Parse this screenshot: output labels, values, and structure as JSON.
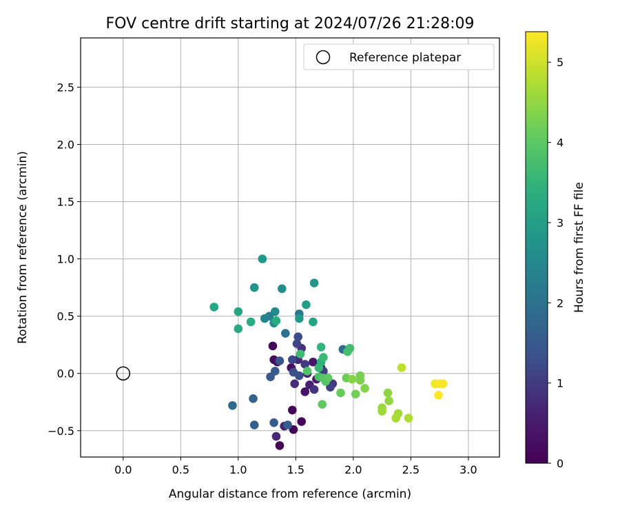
{
  "chart_data": {
    "type": "scatter",
    "title": "FOV centre drift starting at 2024/07/26 21:28:09",
    "xlabel": "Angular distance from reference (arcmin)",
    "ylabel": "Rotation from reference (arcmin)",
    "xlim": [
      -0.37,
      3.27
    ],
    "ylim": [
      -0.73,
      2.93
    ],
    "xticks": [
      "0.0",
      "0.5",
      "1.0",
      "1.5",
      "2.0",
      "2.5",
      "3.0"
    ],
    "xtick_values": [
      0.0,
      0.5,
      1.0,
      1.5,
      2.0,
      2.5,
      3.0
    ],
    "yticks": [
      "−0.5",
      "0.0",
      "0.5",
      "1.0",
      "1.5",
      "2.0",
      "2.5"
    ],
    "ytick_values": [
      -0.5,
      0.0,
      0.5,
      1.0,
      1.5,
      2.0,
      2.5
    ],
    "grid": true,
    "legend": {
      "position": "top-right",
      "entries": [
        "Reference platepar"
      ]
    },
    "reference_point": {
      "x": 0.0,
      "y": 0.0,
      "label": "Reference platepar"
    },
    "colorbar": {
      "label": "Hours from first FF file",
      "range": [
        0,
        5.38
      ],
      "ticks": [
        "0",
        "1",
        "2",
        "3",
        "4",
        "5"
      ],
      "tick_values": [
        0,
        1,
        2,
        3,
        4,
        5
      ],
      "colormap": "viridis"
    },
    "points": [
      {
        "x": 1.36,
        "y": -0.63,
        "hours": 0.0
      },
      {
        "x": 1.48,
        "y": -0.49,
        "hours": 0.05
      },
      {
        "x": 1.47,
        "y": -0.32,
        "hours": 0.08
      },
      {
        "x": 1.55,
        "y": -0.42,
        "hours": 0.1
      },
      {
        "x": 1.3,
        "y": 0.24,
        "hours": 0.15
      },
      {
        "x": 1.31,
        "y": 0.12,
        "hours": 0.2
      },
      {
        "x": 1.34,
        "y": 0.1,
        "hours": 0.25
      },
      {
        "x": 1.46,
        "y": 0.05,
        "hours": 0.3
      },
      {
        "x": 1.58,
        "y": -0.16,
        "hours": 0.35
      },
      {
        "x": 1.65,
        "y": 0.1,
        "hours": 0.4
      },
      {
        "x": 1.68,
        "y": -0.05,
        "hours": 0.45
      },
      {
        "x": 1.6,
        "y": 0.0,
        "hours": 0.5
      },
      {
        "x": 1.72,
        "y": 0.05,
        "hours": 0.55
      },
      {
        "x": 1.62,
        "y": -0.1,
        "hours": 0.6
      },
      {
        "x": 1.4,
        "y": -0.46,
        "hours": 0.65
      },
      {
        "x": 1.33,
        "y": -0.55,
        "hours": 0.7
      },
      {
        "x": 1.52,
        "y": 0.12,
        "hours": 0.75
      },
      {
        "x": 1.49,
        "y": -0.09,
        "hours": 0.8
      },
      {
        "x": 1.55,
        "y": 0.22,
        "hours": 0.85
      },
      {
        "x": 1.66,
        "y": -0.14,
        "hours": 0.9
      },
      {
        "x": 1.82,
        "y": -0.09,
        "hours": 0.95
      },
      {
        "x": 1.58,
        "y": 0.08,
        "hours": 1.0
      },
      {
        "x": 1.74,
        "y": 0.02,
        "hours": 1.05
      },
      {
        "x": 1.8,
        "y": -0.12,
        "hours": 1.1
      },
      {
        "x": 1.51,
        "y": 0.26,
        "hours": 1.15
      },
      {
        "x": 1.47,
        "y": 0.12,
        "hours": 1.2
      },
      {
        "x": 1.52,
        "y": 0.32,
        "hours": 1.25
      },
      {
        "x": 1.53,
        "y": -0.02,
        "hours": 1.3
      },
      {
        "x": 1.48,
        "y": 0.01,
        "hours": 1.35
      },
      {
        "x": 1.36,
        "y": 0.11,
        "hours": 1.4
      },
      {
        "x": 1.28,
        "y": -0.03,
        "hours": 1.45
      },
      {
        "x": 1.32,
        "y": 0.02,
        "hours": 1.5
      },
      {
        "x": 1.31,
        "y": -0.43,
        "hours": 1.55
      },
      {
        "x": 1.43,
        "y": -0.45,
        "hours": 1.6
      },
      {
        "x": 1.14,
        "y": -0.45,
        "hours": 1.65
      },
      {
        "x": 1.13,
        "y": -0.22,
        "hours": 1.7
      },
      {
        "x": 0.95,
        "y": -0.28,
        "hours": 1.8
      },
      {
        "x": 1.91,
        "y": 0.21,
        "hours": 1.9
      },
      {
        "x": 1.41,
        "y": 0.35,
        "hours": 2.0
      },
      {
        "x": 1.53,
        "y": 0.52,
        "hours": 2.1
      },
      {
        "x": 1.27,
        "y": 0.5,
        "hours": 2.3
      },
      {
        "x": 1.23,
        "y": 0.48,
        "hours": 2.4
      },
      {
        "x": 1.32,
        "y": 0.54,
        "hours": 2.5
      },
      {
        "x": 1.31,
        "y": 0.44,
        "hours": 2.55
      },
      {
        "x": 1.38,
        "y": 0.74,
        "hours": 2.65
      },
      {
        "x": 1.14,
        "y": 0.75,
        "hours": 2.75
      },
      {
        "x": 1.66,
        "y": 0.79,
        "hours": 2.8
      },
      {
        "x": 1.21,
        "y": 1.0,
        "hours": 2.85
      },
      {
        "x": 1.53,
        "y": 0.48,
        "hours": 2.9
      },
      {
        "x": 1.59,
        "y": 0.6,
        "hours": 3.0
      },
      {
        "x": 1.65,
        "y": 0.45,
        "hours": 3.1
      },
      {
        "x": 1.0,
        "y": 0.54,
        "hours": 3.15
      },
      {
        "x": 0.79,
        "y": 0.58,
        "hours": 3.2
      },
      {
        "x": 1.0,
        "y": 0.39,
        "hours": 3.25
      },
      {
        "x": 1.11,
        "y": 0.45,
        "hours": 3.3
      },
      {
        "x": 1.33,
        "y": 0.46,
        "hours": 3.35
      },
      {
        "x": 1.72,
        "y": 0.1,
        "hours": 3.4
      },
      {
        "x": 1.72,
        "y": 0.23,
        "hours": 3.5
      },
      {
        "x": 1.7,
        "y": 0.05,
        "hours": 3.55
      },
      {
        "x": 1.74,
        "y": 0.14,
        "hours": 3.6
      },
      {
        "x": 1.54,
        "y": 0.17,
        "hours": 3.65
      },
      {
        "x": 1.97,
        "y": 0.22,
        "hours": 3.7
      },
      {
        "x": 1.95,
        "y": 0.19,
        "hours": 3.75
      },
      {
        "x": 1.7,
        "y": -0.03,
        "hours": 3.8
      },
      {
        "x": 1.6,
        "y": 0.02,
        "hours": 3.85
      },
      {
        "x": 1.76,
        "y": -0.07,
        "hours": 3.9
      },
      {
        "x": 1.74,
        "y": -0.04,
        "hours": 3.95
      },
      {
        "x": 1.78,
        "y": -0.04,
        "hours": 4.0
      },
      {
        "x": 1.73,
        "y": -0.27,
        "hours": 4.05
      },
      {
        "x": 1.89,
        "y": -0.17,
        "hours": 4.1
      },
      {
        "x": 1.94,
        "y": -0.04,
        "hours": 4.15
      },
      {
        "x": 2.02,
        "y": -0.18,
        "hours": 4.2
      },
      {
        "x": 2.06,
        "y": -0.02,
        "hours": 4.25
      },
      {
        "x": 2.06,
        "y": -0.06,
        "hours": 4.3
      },
      {
        "x": 2.1,
        "y": -0.13,
        "hours": 4.35
      },
      {
        "x": 1.99,
        "y": -0.05,
        "hours": 4.4
      },
      {
        "x": 2.3,
        "y": -0.17,
        "hours": 4.45
      },
      {
        "x": 2.31,
        "y": -0.24,
        "hours": 4.5
      },
      {
        "x": 2.25,
        "y": -0.3,
        "hours": 4.55
      },
      {
        "x": 2.25,
        "y": -0.33,
        "hours": 4.6
      },
      {
        "x": 2.39,
        "y": -0.35,
        "hours": 4.65
      },
      {
        "x": 2.37,
        "y": -0.39,
        "hours": 4.7
      },
      {
        "x": 2.48,
        "y": -0.39,
        "hours": 4.75
      },
      {
        "x": 2.42,
        "y": 0.05,
        "hours": 4.85
      },
      {
        "x": 2.71,
        "y": -0.09,
        "hours": 5.3
      },
      {
        "x": 2.75,
        "y": -0.09,
        "hours": 5.32
      },
      {
        "x": 2.78,
        "y": -0.09,
        "hours": 5.34
      },
      {
        "x": 2.74,
        "y": -0.19,
        "hours": 5.36
      }
    ]
  }
}
